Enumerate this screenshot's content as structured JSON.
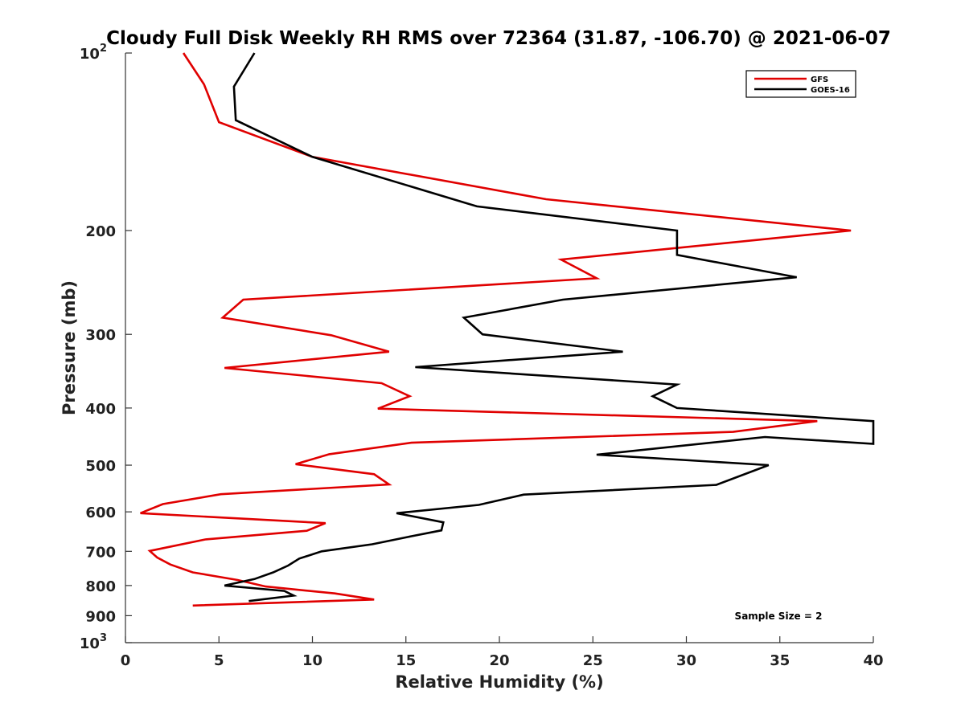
{
  "chart_data": {
    "type": "line",
    "title": "Cloudy Full Disk Weekly RH RMS over 72364 (31.87, -106.70) @ 2021-06-07",
    "xlabel": "Relative Humidity (%)",
    "ylabel": "Pressure (mb)",
    "xlim": [
      0,
      40
    ],
    "ylim": [
      100,
      1000
    ],
    "y_scale": "log",
    "y_reversed": true,
    "grid": false,
    "legend_position": "top-right",
    "x_ticks": [
      {
        "value": 0,
        "label": "0"
      },
      {
        "value": 5,
        "label": "5"
      },
      {
        "value": 10,
        "label": "10"
      },
      {
        "value": 15,
        "label": "15"
      },
      {
        "value": 20,
        "label": "20"
      },
      {
        "value": 25,
        "label": "25"
      },
      {
        "value": 30,
        "label": "30"
      },
      {
        "value": 35,
        "label": "35"
      },
      {
        "value": 40,
        "label": "40"
      }
    ],
    "y_ticks": [
      {
        "value": 100,
        "label": "10",
        "sup": "2"
      },
      {
        "value": 200,
        "label": "200"
      },
      {
        "value": 300,
        "label": "300"
      },
      {
        "value": 400,
        "label": "400"
      },
      {
        "value": 500,
        "label": "500"
      },
      {
        "value": 600,
        "label": "600"
      },
      {
        "value": 700,
        "label": "700"
      },
      {
        "value": 800,
        "label": "800"
      },
      {
        "value": 900,
        "label": "900"
      },
      {
        "value": 1000,
        "label": "10",
        "sup": "3"
      }
    ],
    "series": [
      {
        "name": "GFS",
        "color": "#e00000",
        "points": [
          [
            3.1,
            100
          ],
          [
            4.2,
            113
          ],
          [
            5.0,
            131
          ],
          [
            10.0,
            150
          ],
          [
            22.5,
            177
          ],
          [
            38.8,
            200
          ],
          [
            23.3,
            224
          ],
          [
            25.2,
            241
          ],
          [
            6.3,
            262
          ],
          [
            5.2,
            281
          ],
          [
            11.0,
            301
          ],
          [
            14.1,
            321
          ],
          [
            5.3,
            342
          ],
          [
            13.7,
            363
          ],
          [
            15.2,
            382
          ],
          [
            13.5,
            401
          ],
          [
            37.0,
            421
          ],
          [
            32.5,
            439
          ],
          [
            15.3,
            458
          ],
          [
            10.9,
            479
          ],
          [
            9.1,
            498
          ],
          [
            13.3,
            518
          ],
          [
            14.1,
            539
          ],
          [
            5.1,
            560
          ],
          [
            2.0,
            582
          ],
          [
            0.8,
            603
          ],
          [
            10.7,
            627
          ],
          [
            9.7,
            646
          ],
          [
            4.3,
            668
          ],
          [
            1.3,
            699
          ],
          [
            1.7,
            717
          ],
          [
            2.4,
            737
          ],
          [
            3.6,
            760
          ],
          [
            6.0,
            783
          ],
          [
            7.5,
            803
          ],
          [
            11.2,
            825
          ],
          [
            13.3,
            845
          ],
          [
            3.6,
            865
          ]
        ]
      },
      {
        "name": "GOES-16",
        "color": "#000000",
        "points": [
          [
            6.9,
            100
          ],
          [
            5.8,
            114
          ],
          [
            5.9,
            130
          ],
          [
            10.0,
            150
          ],
          [
            18.8,
            182
          ],
          [
            29.5,
            200
          ],
          [
            29.5,
            220
          ],
          [
            35.9,
            240
          ],
          [
            23.4,
            262
          ],
          [
            18.1,
            281
          ],
          [
            19.1,
            300
          ],
          [
            26.6,
            321
          ],
          [
            15.5,
            341
          ],
          [
            29.5,
            365
          ],
          [
            28.2,
            382
          ],
          [
            29.5,
            400
          ],
          [
            40.0,
            421
          ],
          [
            40.0,
            460
          ],
          [
            34.2,
            448
          ],
          [
            25.2,
            480
          ],
          [
            34.4,
            500
          ],
          [
            31.6,
            540
          ],
          [
            21.3,
            561
          ],
          [
            18.9,
            584
          ],
          [
            14.5,
            603
          ],
          [
            17.0,
            625
          ],
          [
            16.9,
            645
          ],
          [
            15.3,
            660
          ],
          [
            13.2,
            681
          ],
          [
            10.5,
            700
          ],
          [
            9.3,
            720
          ],
          [
            8.7,
            740
          ],
          [
            7.9,
            760
          ],
          [
            6.9,
            780
          ],
          [
            5.3,
            800
          ],
          [
            8.5,
            817
          ],
          [
            9.0,
            832
          ],
          [
            6.6,
            850
          ]
        ]
      }
    ],
    "annotation": "Sample Size = 2"
  }
}
